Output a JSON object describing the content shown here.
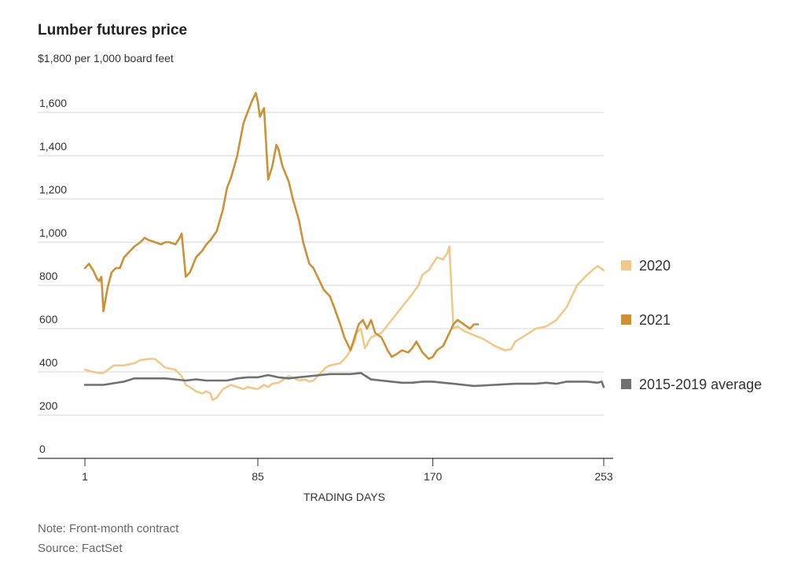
{
  "title": "Lumber futures price",
  "unit_label": "$1,800 per 1,000 board feet",
  "footer": {
    "note": "Note: Front-month contract",
    "source": "Source: FactSet"
  },
  "chart_data": {
    "type": "line",
    "title": "Lumber futures price",
    "xlabel": "TRADING DAYS",
    "ylabel": "",
    "xlim": [
      1,
      253
    ],
    "ylim": [
      0,
      1800
    ],
    "x_ticks": [
      1,
      85,
      170,
      253
    ],
    "y_ticks": [
      0,
      200,
      400,
      600,
      800,
      1000,
      1200,
      1400,
      1600
    ],
    "y_tick_labels": [
      "0",
      "200",
      "400",
      "600",
      "800",
      "1,000",
      "1,200",
      "1,400",
      "1,600"
    ],
    "grid": "horizontal",
    "legend": "right",
    "series": [
      {
        "name": "2020",
        "color": "#f0c98a",
        "x": [
          1,
          5,
          8,
          10,
          15,
          20,
          25,
          28,
          32,
          35,
          40,
          45,
          48,
          50,
          52,
          55,
          58,
          60,
          62,
          63,
          65,
          68,
          70,
          72,
          75,
          78,
          80,
          85,
          88,
          90,
          92,
          95,
          100,
          103,
          105,
          108,
          110,
          112,
          115,
          118,
          120,
          125,
          128,
          130,
          132,
          133,
          135,
          137,
          140,
          145,
          150,
          155,
          160,
          163,
          165,
          168,
          170,
          172,
          175,
          177,
          178,
          180,
          182,
          185,
          190,
          195,
          200,
          205,
          208,
          210,
          215,
          220,
          225,
          230,
          235,
          240,
          245,
          250,
          253
        ],
        "y": [
          410,
          400,
          395,
          395,
          430,
          430,
          440,
          455,
          460,
          460,
          420,
          410,
          380,
          340,
          330,
          310,
          300,
          310,
          300,
          270,
          280,
          320,
          330,
          340,
          330,
          320,
          330,
          320,
          340,
          330,
          345,
          350,
          380,
          370,
          360,
          365,
          355,
          360,
          390,
          420,
          430,
          440,
          470,
          500,
          540,
          580,
          600,
          510,
          560,
          580,
          640,
          700,
          760,
          800,
          850,
          870,
          900,
          930,
          920,
          950,
          980,
          600,
          610,
          590,
          570,
          550,
          520,
          500,
          505,
          540,
          570,
          600,
          610,
          640,
          700,
          800,
          850,
          890,
          870
        ]
      },
      {
        "name": "2021",
        "color": "#cc9136",
        "x": [
          1,
          3,
          5,
          7,
          8,
          9,
          10,
          12,
          14,
          16,
          18,
          20,
          22,
          25,
          28,
          30,
          32,
          35,
          38,
          40,
          42,
          45,
          47,
          48,
          50,
          52,
          55,
          58,
          60,
          62,
          65,
          68,
          70,
          72,
          75,
          78,
          80,
          82,
          84,
          85,
          86,
          88,
          90,
          92,
          94,
          95,
          97,
          100,
          102,
          105,
          107,
          110,
          112,
          115,
          117,
          120,
          122,
          125,
          127,
          130,
          132,
          134,
          136,
          138,
          140,
          142,
          145,
          148,
          150,
          152,
          155,
          158,
          160,
          162,
          165,
          168,
          170,
          172,
          175,
          177,
          180,
          182,
          185,
          188,
          190,
          192
        ],
        "y": [
          880,
          900,
          870,
          830,
          820,
          840,
          680,
          790,
          860,
          880,
          880,
          930,
          950,
          980,
          1000,
          1020,
          1010,
          1000,
          990,
          1000,
          1000,
          990,
          1020,
          1040,
          840,
          860,
          930,
          960,
          990,
          1010,
          1050,
          1150,
          1250,
          1300,
          1400,
          1550,
          1600,
          1650,
          1690,
          1650,
          1580,
          1620,
          1290,
          1350,
          1450,
          1430,
          1350,
          1280,
          1200,
          1100,
          1000,
          900,
          880,
          820,
          780,
          750,
          700,
          620,
          560,
          500,
          560,
          620,
          640,
          600,
          640,
          580,
          560,
          500,
          470,
          480,
          500,
          490,
          510,
          540,
          490,
          460,
          470,
          500,
          520,
          560,
          620,
          640,
          620,
          600,
          620,
          620
        ]
      },
      {
        "name": "2015-2019 average",
        "color": "#707070",
        "x": [
          1,
          10,
          20,
          25,
          30,
          40,
          50,
          55,
          60,
          65,
          70,
          75,
          80,
          85,
          90,
          95,
          100,
          110,
          120,
          130,
          135,
          140,
          145,
          150,
          155,
          160,
          165,
          170,
          175,
          180,
          185,
          190,
          200,
          210,
          220,
          225,
          230,
          235,
          240,
          245,
          250,
          252,
          253
        ],
        "y": [
          340,
          340,
          355,
          370,
          370,
          370,
          360,
          365,
          360,
          360,
          360,
          370,
          375,
          375,
          385,
          375,
          370,
          380,
          390,
          390,
          395,
          365,
          360,
          355,
          350,
          350,
          355,
          355,
          350,
          345,
          340,
          335,
          340,
          345,
          345,
          350,
          345,
          355,
          355,
          355,
          350,
          355,
          330
        ]
      }
    ]
  }
}
